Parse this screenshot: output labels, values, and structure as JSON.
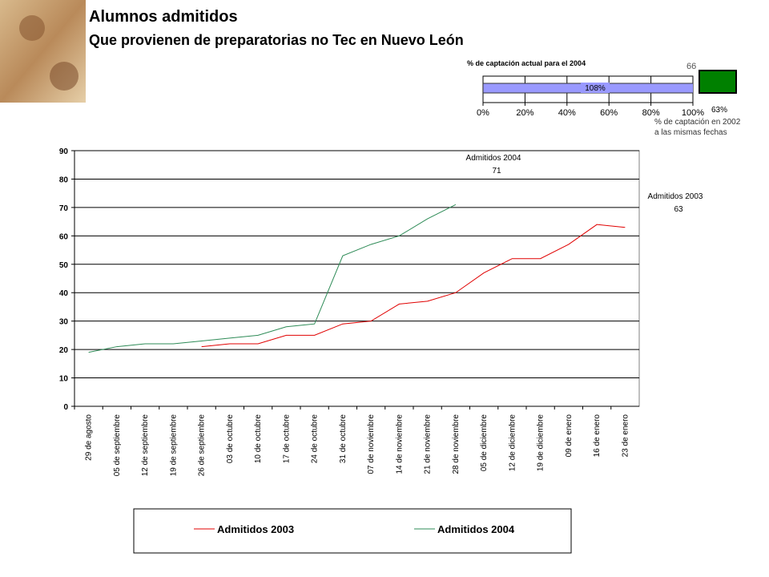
{
  "header": {
    "title": "Alumnos admitidos",
    "subtitle": "Que provienen de preparatorias no Tec en Nuevo León"
  },
  "chart_data": [
    {
      "type": "line",
      "categories": [
        "29 de agosto",
        "05 de septiembre",
        "12 de septiembre",
        "19 de septiembre",
        "26 de septiembre",
        "03 de octubre",
        "10 de octubre",
        "17 de octubre",
        "24 de octubre",
        "31 de octubre",
        "07 de noviembre",
        "14 de noviembre",
        "21 de noviembre",
        "28 de noviembre",
        "05 de diciembre",
        "12 de diciembre",
        "19 de diciembre",
        "09 de enero",
        "16 de enero",
        "23 de enero"
      ],
      "series": [
        {
          "name": "Admitidos 2003",
          "color": "#e00000",
          "values": [
            null,
            null,
            null,
            null,
            21,
            22,
            22,
            25,
            25,
            29,
            30,
            36,
            37,
            40,
            47,
            52,
            52,
            57,
            64,
            63
          ]
        },
        {
          "name": "Admitidos 2004",
          "color": "#2e8b57",
          "values": [
            19,
            21,
            22,
            22,
            23,
            24,
            25,
            28,
            29,
            53,
            57,
            60,
            66,
            71,
            null,
            null,
            null,
            null,
            null,
            null
          ]
        }
      ],
      "ylim": [
        0,
        90
      ],
      "yticks": [
        0,
        10,
        20,
        30,
        40,
        50,
        60,
        70,
        80,
        90
      ],
      "grid": true,
      "annotations": [
        [
          "Admitidos 2004",
          "71"
        ],
        [
          "Admitidos 2003",
          "63"
        ]
      ],
      "legend": "bottom"
    },
    {
      "type": "hbar",
      "title": "% de captación actual para el 2004",
      "values": [
        108
      ],
      "value_labels": [
        "108%"
      ],
      "color": "#9999ff",
      "xlim": [
        0,
        100
      ],
      "xticks": [
        {
          "value": 0,
          "label": "0%"
        },
        {
          "value": 20,
          "label": "20%"
        },
        {
          "value": 40,
          "label": "40%"
        },
        {
          "value": 60,
          "label": "60%"
        },
        {
          "value": 80,
          "label": "80%"
        },
        {
          "value": 100,
          "label": "100%"
        }
      ],
      "grid": true,
      "reference": {
        "value_label": "66",
        "label": "63%",
        "color": "#008000",
        "note": [
          "% de captación en 2002",
          "a las mismas fechas"
        ]
      }
    }
  ]
}
